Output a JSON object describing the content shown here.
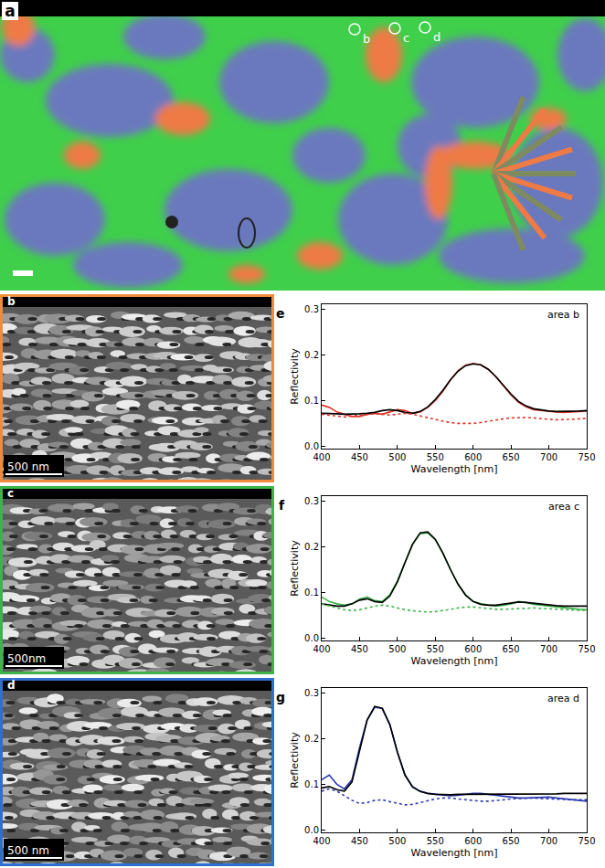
{
  "figure": {
    "panel_a": {
      "label": "a",
      "markers": [
        "b",
        "c",
        "d"
      ]
    },
    "micrographs": [
      {
        "label": "b",
        "scale_bar": "500 nm",
        "color": "#f08a3c"
      },
      {
        "label": "c",
        "scale_bar": "500nm",
        "color": "#3cb44a"
      },
      {
        "label": "d",
        "scale_bar": "500 nm",
        "color": "#2f6fd0"
      }
    ]
  },
  "chart_data": [
    {
      "type": "line",
      "label": "e",
      "title": "area b",
      "x_label": "Wavelength [nm]",
      "y_label": "Reflectivity",
      "x": [
        400,
        410,
        420,
        430,
        440,
        450,
        460,
        470,
        480,
        490,
        500,
        510,
        520,
        530,
        540,
        550,
        560,
        570,
        580,
        590,
        600,
        610,
        620,
        630,
        640,
        650,
        660,
        670,
        680,
        690,
        700,
        710,
        720,
        730,
        740,
        750
      ],
      "xlim": [
        400,
        750
      ],
      "xticks": [
        400,
        450,
        500,
        550,
        600,
        650,
        700,
        750
      ],
      "ylim": [
        -0.005,
        0.31
      ],
      "yticks": [
        {
          "value": 0,
          "label": "0.0"
        },
        0.1,
        0.2,
        0.3
      ],
      "series": [
        {
          "color": "#e0362a",
          "line_style": "solid",
          "values": [
            0.09,
            0.085,
            0.075,
            0.07,
            0.065,
            0.065,
            0.07,
            0.072,
            0.07,
            0.075,
            0.08,
            0.078,
            0.072,
            0.075,
            0.085,
            0.1,
            0.12,
            0.145,
            0.165,
            0.177,
            0.181,
            0.178,
            0.168,
            0.152,
            0.132,
            0.112,
            0.096,
            0.086,
            0.08,
            0.078,
            0.076,
            0.075,
            0.074,
            0.075,
            0.076,
            0.077
          ]
        },
        {
          "color": "#000000",
          "line_style": "solid",
          "values": [
            0.072,
            0.072,
            0.071,
            0.07,
            0.07,
            0.071,
            0.072,
            0.074,
            0.078,
            0.08,
            0.078,
            0.074,
            0.072,
            0.076,
            0.086,
            0.102,
            0.122,
            0.145,
            0.164,
            0.176,
            0.18,
            0.178,
            0.168,
            0.152,
            0.133,
            0.114,
            0.098,
            0.088,
            0.082,
            0.079,
            0.077,
            0.076,
            0.076,
            0.076,
            0.077,
            0.078
          ]
        },
        {
          "color": "#e0362a",
          "line_style": "dotted",
          "values": [
            0.07,
            0.068,
            0.065,
            0.064,
            0.066,
            0.068,
            0.07,
            0.071,
            0.07,
            0.068,
            0.07,
            0.072,
            0.07,
            0.066,
            0.062,
            0.058,
            0.055,
            0.052,
            0.05,
            0.05,
            0.05,
            0.052,
            0.055,
            0.058,
            0.06,
            0.062,
            0.063,
            0.063,
            0.062,
            0.06,
            0.059,
            0.058,
            0.058,
            0.059,
            0.06,
            0.061
          ]
        }
      ]
    },
    {
      "type": "line",
      "label": "f",
      "title": "area c",
      "x_label": "Wavelength [nm]",
      "y_label": "Reflectivity",
      "x": [
        400,
        410,
        420,
        430,
        440,
        450,
        460,
        470,
        480,
        490,
        500,
        510,
        520,
        530,
        540,
        550,
        560,
        570,
        580,
        590,
        600,
        610,
        620,
        630,
        640,
        650,
        660,
        670,
        680,
        690,
        700,
        710,
        720,
        730,
        740,
        750
      ],
      "xlim": [
        400,
        750
      ],
      "xticks": [
        400,
        450,
        500,
        550,
        600,
        650,
        700,
        750
      ],
      "ylim": [
        -0.005,
        0.31
      ],
      "yticks": [
        {
          "value": 0,
          "label": "0.0"
        },
        0.1,
        0.2,
        0.3
      ],
      "series": [
        {
          "color": "#3cb44a",
          "line_style": "solid",
          "values": [
            0.09,
            0.08,
            0.075,
            0.072,
            0.075,
            0.085,
            0.09,
            0.082,
            0.08,
            0.095,
            0.125,
            0.165,
            0.205,
            0.228,
            0.23,
            0.215,
            0.185,
            0.15,
            0.118,
            0.095,
            0.08,
            0.075,
            0.072,
            0.07,
            0.072,
            0.075,
            0.08,
            0.078,
            0.074,
            0.072,
            0.07,
            0.068,
            0.066,
            0.064,
            0.063,
            0.062
          ]
        },
        {
          "color": "#000000",
          "line_style": "solid",
          "values": [
            0.075,
            0.072,
            0.07,
            0.07,
            0.075,
            0.083,
            0.086,
            0.08,
            0.078,
            0.092,
            0.123,
            0.165,
            0.205,
            0.23,
            0.232,
            0.216,
            0.186,
            0.15,
            0.118,
            0.094,
            0.08,
            0.074,
            0.072,
            0.072,
            0.074,
            0.077,
            0.079,
            0.078,
            0.076,
            0.074,
            0.072,
            0.071,
            0.07,
            0.07,
            0.07,
            0.07
          ]
        },
        {
          "color": "#3cb44a",
          "line_style": "dotted",
          "values": [
            0.075,
            0.07,
            0.066,
            0.062,
            0.06,
            0.062,
            0.066,
            0.07,
            0.072,
            0.07,
            0.066,
            0.062,
            0.06,
            0.058,
            0.057,
            0.058,
            0.06,
            0.063,
            0.066,
            0.068,
            0.068,
            0.066,
            0.064,
            0.063,
            0.063,
            0.064,
            0.065,
            0.066,
            0.066,
            0.065,
            0.064,
            0.063,
            0.062,
            0.062,
            0.061,
            0.061
          ]
        }
      ]
    },
    {
      "type": "line",
      "label": "g",
      "title": "area d",
      "x_label": "Wavelength [nm]",
      "y_label": "Reflectivity",
      "x": [
        400,
        410,
        420,
        430,
        440,
        450,
        460,
        470,
        480,
        490,
        500,
        510,
        520,
        530,
        540,
        550,
        560,
        570,
        580,
        590,
        600,
        610,
        620,
        630,
        640,
        650,
        660,
        670,
        680,
        690,
        700,
        710,
        720,
        730,
        740,
        750
      ],
      "xlim": [
        400,
        750
      ],
      "xticks": [
        400,
        450,
        500,
        550,
        600,
        650,
        700,
        750
      ],
      "ylim": [
        -0.005,
        0.31
      ],
      "yticks": [
        {
          "value": 0,
          "label": "0.0"
        },
        0.1,
        0.2,
        0.3
      ],
      "series": [
        {
          "color": "#2d3bb0",
          "line_style": "solid",
          "values": [
            0.11,
            0.12,
            0.1,
            0.09,
            0.11,
            0.18,
            0.24,
            0.268,
            0.265,
            0.23,
            0.17,
            0.12,
            0.095,
            0.085,
            0.08,
            0.078,
            0.076,
            0.075,
            0.076,
            0.078,
            0.08,
            0.08,
            0.078,
            0.076,
            0.074,
            0.072,
            0.07,
            0.07,
            0.071,
            0.072,
            0.072,
            0.07,
            0.068,
            0.066,
            0.064,
            0.063
          ]
        },
        {
          "color": "#000000",
          "line_style": "solid",
          "values": [
            0.092,
            0.095,
            0.088,
            0.085,
            0.105,
            0.175,
            0.24,
            0.27,
            0.266,
            0.23,
            0.17,
            0.12,
            0.094,
            0.084,
            0.08,
            0.078,
            0.077,
            0.077,
            0.078,
            0.078,
            0.078,
            0.078,
            0.078,
            0.078,
            0.078,
            0.078,
            0.078,
            0.078,
            0.078,
            0.078,
            0.079,
            0.079,
            0.08,
            0.08,
            0.08,
            0.08
          ]
        },
        {
          "color": "#2d3bb0",
          "line_style": "dotted",
          "values": [
            0.085,
            0.09,
            0.085,
            0.075,
            0.065,
            0.058,
            0.06,
            0.065,
            0.066,
            0.062,
            0.058,
            0.055,
            0.056,
            0.06,
            0.065,
            0.068,
            0.07,
            0.07,
            0.068,
            0.066,
            0.064,
            0.063,
            0.063,
            0.064,
            0.066,
            0.068,
            0.069,
            0.07,
            0.07,
            0.069,
            0.068,
            0.067,
            0.066,
            0.066,
            0.066,
            0.066
          ]
        }
      ]
    }
  ]
}
